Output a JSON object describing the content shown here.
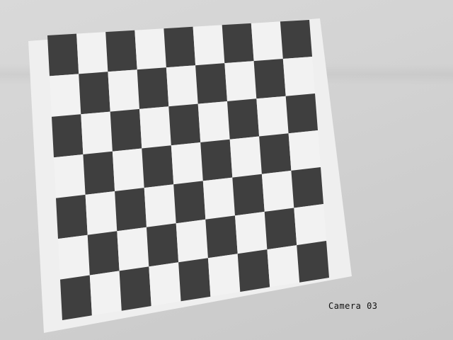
{
  "overlay": {
    "camera_label": "Camera 03"
  },
  "scene": {
    "subject": "checkerboard",
    "rows": 7,
    "cols": 9,
    "dark_color": "#3f3f3f",
    "light_color": "#f2f2f2",
    "paper_color": "#efefef",
    "background_color": "#d4d4d4"
  }
}
